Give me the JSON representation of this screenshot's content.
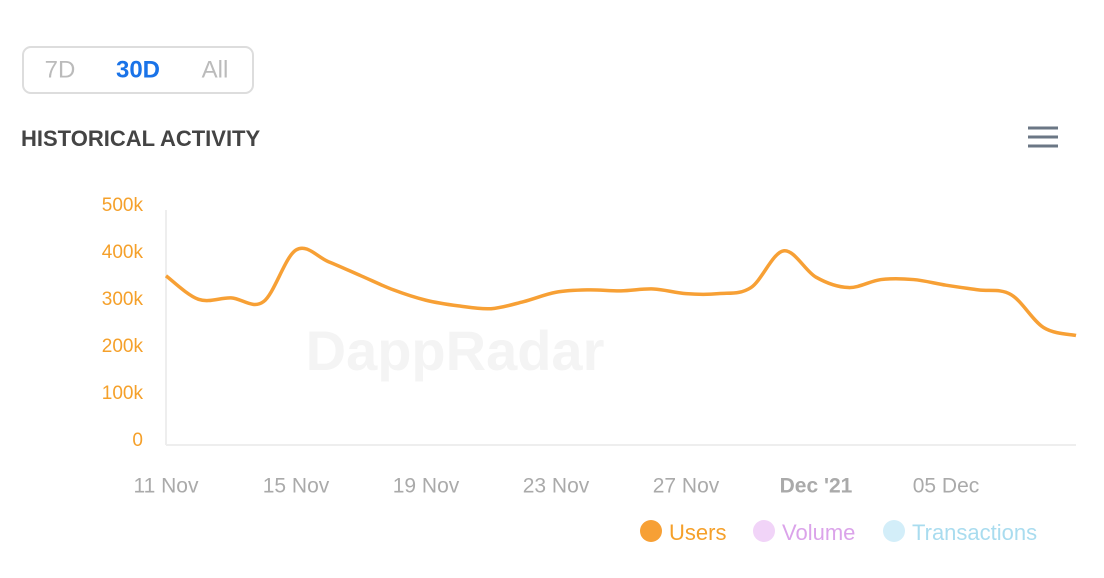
{
  "range_buttons": [
    "7D",
    "30D",
    "All"
  ],
  "active_range": 1,
  "watermark": "DappRadar",
  "chart_data": {
    "type": "line",
    "title": "HISTORICAL ACTIVITY",
    "categories": [
      "11 Nov",
      null,
      null,
      null,
      "15 Nov",
      null,
      null,
      null,
      "19 Nov",
      null,
      null,
      null,
      "23 Nov",
      null,
      null,
      null,
      "27 Nov",
      null,
      null,
      null,
      "Dec '21",
      null,
      null,
      null,
      "05 Dec",
      null,
      null,
      null,
      null
    ],
    "bold_categories": [
      20
    ],
    "series": [
      {
        "name": "Users",
        "color": "#f7a035",
        "active": true,
        "values": [
          360000,
          310000,
          313000,
          305000,
          415000,
          390000,
          360000,
          330000,
          308000,
          296000,
          290000,
          305000,
          325000,
          330000,
          328000,
          332000,
          322000,
          322000,
          335000,
          413000,
          357000,
          335000,
          352000,
          352000,
          340000,
          330000,
          320000,
          250000,
          233000
        ]
      },
      {
        "name": "Volume",
        "color": "#f1d4f8",
        "active": false
      },
      {
        "name": "Transactions",
        "color": "#d3eef9",
        "active": false
      }
    ],
    "ylim": [
      0,
      500000
    ],
    "yticks": [
      0,
      {
        "value": 100000,
        "label": "100k"
      },
      {
        "value": 200000,
        "label": "200k"
      },
      {
        "value": 300000,
        "label": "300k"
      },
      {
        "value": 400000,
        "label": "400k"
      },
      {
        "value": 500000,
        "label": "500k"
      }
    ],
    "grid": false
  }
}
